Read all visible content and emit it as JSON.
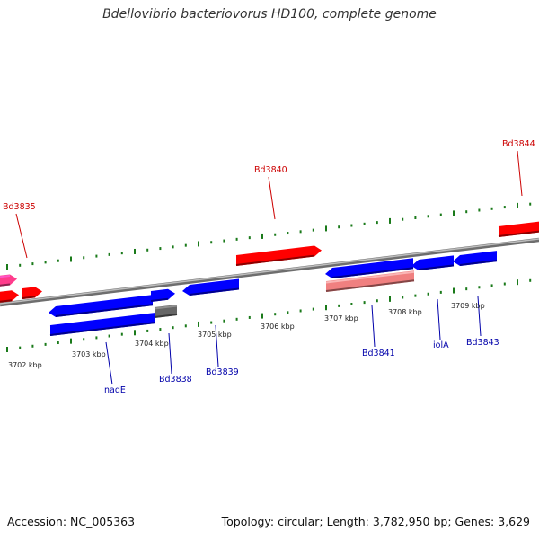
{
  "title": "Bdellovibrio bacteriovorus HD100, complete genome",
  "footer": {
    "accession": "Accession: NC_005363",
    "stats": "Topology: circular; Length: 3,782,950 bp; Genes: 3,629"
  },
  "colors": {
    "forward_gene": "#ff0000",
    "reverse_gene": "#0000ff",
    "backbone": "#888888",
    "ticks": "#1a7a1a",
    "label_red": "#cc0000",
    "label_blue": "#0000aa",
    "pseudo_forward": "#f08080",
    "pink_gene": "#ff3c8c",
    "grey_gene": "#666666"
  },
  "scale_labels": [
    "3702 kbp",
    "3703 kbp",
    "3704 kbp",
    "3705 kbp",
    "3706 kbp",
    "3707 kbp",
    "3708 kbp",
    "3709 kbp"
  ],
  "gene_labels": [
    {
      "text": "Bd3835",
      "strand": "forward"
    },
    {
      "text": "Bd3840",
      "strand": "forward"
    },
    {
      "text": "Bd3844",
      "strand": "forward"
    },
    {
      "text": "nadE",
      "strand": "reverse"
    },
    {
      "text": "Bd3838",
      "strand": "reverse"
    },
    {
      "text": "Bd3839",
      "strand": "reverse"
    },
    {
      "text": "Bd3841",
      "strand": "reverse"
    },
    {
      "text": "iolA",
      "strand": "reverse"
    },
    {
      "text": "Bd3843",
      "strand": "reverse"
    }
  ]
}
